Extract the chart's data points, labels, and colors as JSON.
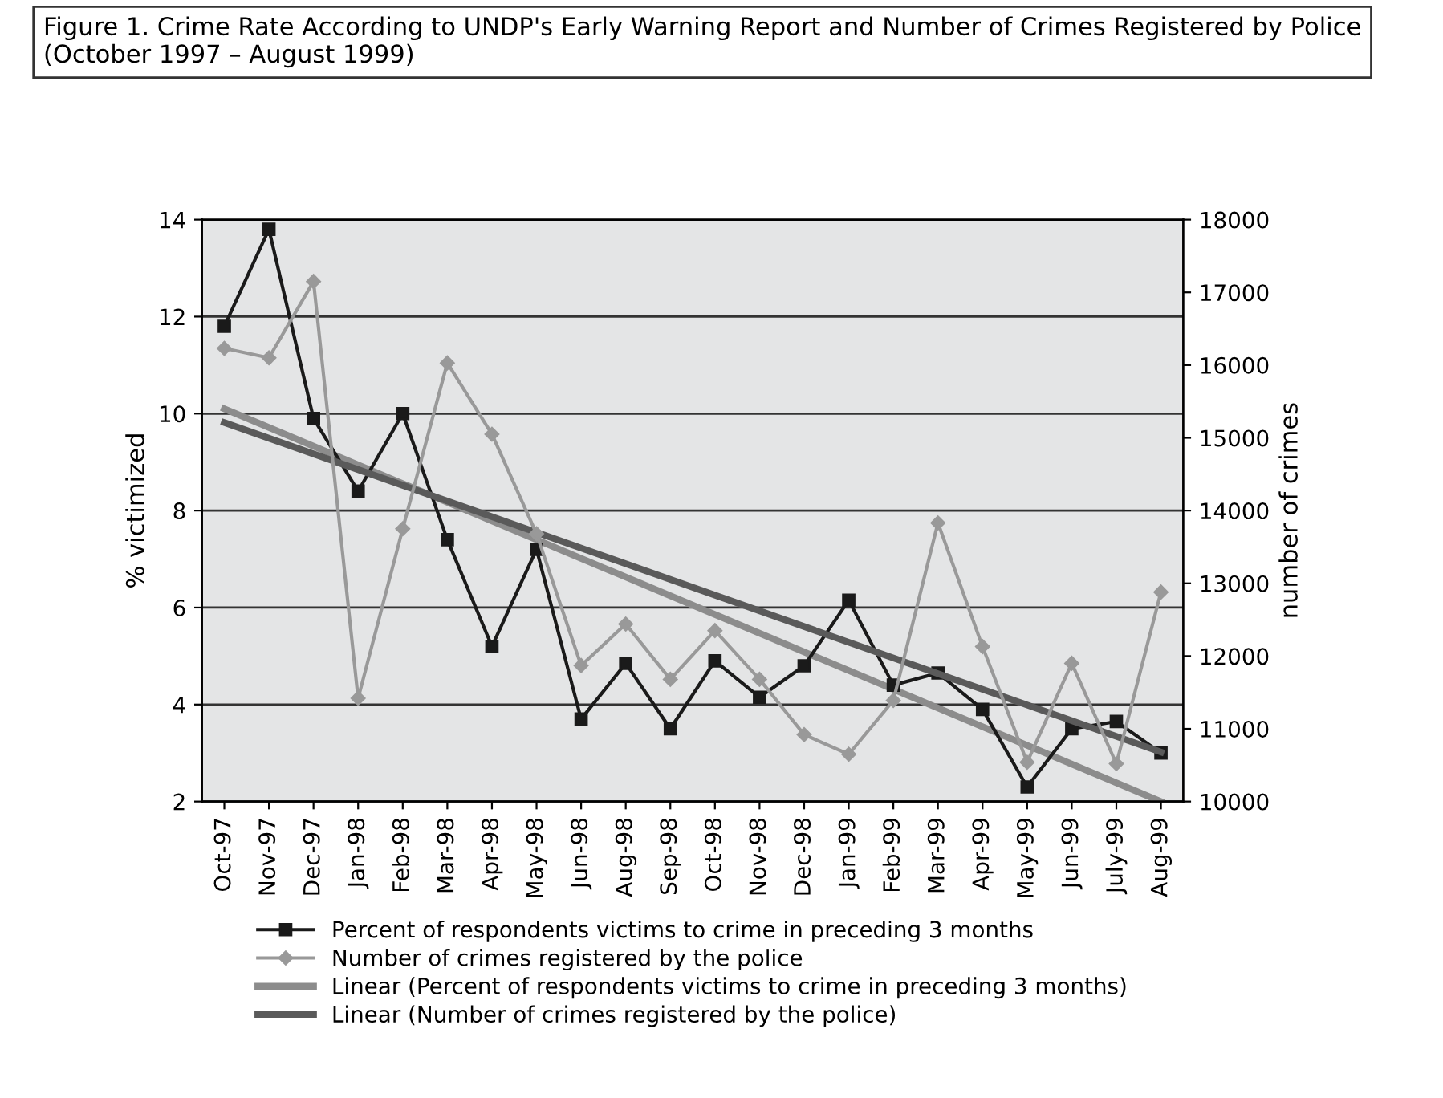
{
  "chart_data": {
    "type": "line",
    "title": "Figure 1. Crime Rate According to UNDP's Early Warning Report and Number of Crimes Registered by Police (October 1997 – August 1999)",
    "ylabel": "% victimized",
    "y2label": "number of crimes",
    "categories": [
      "Oct-97",
      "Nov-97",
      "Dec-97",
      "Jan-98",
      "Feb-98",
      "Mar-98",
      "Apr-98",
      "May-98",
      "Jun-98",
      "Aug-98",
      "Sep-98",
      "Oct-98",
      "Nov-98",
      "Dec-98",
      "Jan-99",
      "Feb-99",
      "Mar-99",
      "Apr-99",
      "May-99",
      "Jun-99",
      "July-99",
      "Aug-99"
    ],
    "series": [
      {
        "name": "Percent of respondents victims to crime in preceding 3 months",
        "color": "#1a1a1a",
        "marker": "square",
        "values": [
          11.8,
          13.8,
          9.9,
          8.4,
          10.0,
          7.4,
          5.2,
          7.2,
          3.7,
          4.85,
          3.5,
          4.9,
          4.15,
          4.8,
          6.15,
          4.4,
          4.65,
          3.9,
          2.3,
          3.5,
          3.65,
          3.0
        ]
      },
      {
        "name": "Number of crimes registered by the police",
        "color": "#999999",
        "marker": "diamond",
        "axis": "y2",
        "values": [
          16230,
          16100,
          17150,
          11420,
          13750,
          16030,
          15050,
          13680,
          11870,
          12440,
          11680,
          12350,
          11680,
          10920,
          10650,
          11390,
          13830,
          12130,
          10540,
          11900,
          10520,
          12880
        ]
      },
      {
        "name": "Linear (Percent of respondents victims to crime in preceding 3 months)",
        "color": "#8c8c8c",
        "x": [
          "Oct-97",
          "Aug-99"
        ],
        "values": [
          10.1,
          2.0
        ]
      },
      {
        "name": "Linear (Number of crimes registered by the police)",
        "color": "#5a5a5a",
        "axis": "y2",
        "x": [
          "Oct-97",
          "Aug-99"
        ],
        "values": [
          15210,
          10680
        ]
      }
    ],
    "ylim": [
      2,
      14
    ],
    "yticks": [
      2,
      4,
      6,
      8,
      10,
      12,
      14
    ],
    "y2lim": [
      10000,
      18000
    ],
    "y2ticks": [
      10000,
      11000,
      12000,
      13000,
      14000,
      15000,
      16000,
      17000,
      18000
    ],
    "grid": "y",
    "legend": "bottom",
    "line_style": "solid"
  }
}
